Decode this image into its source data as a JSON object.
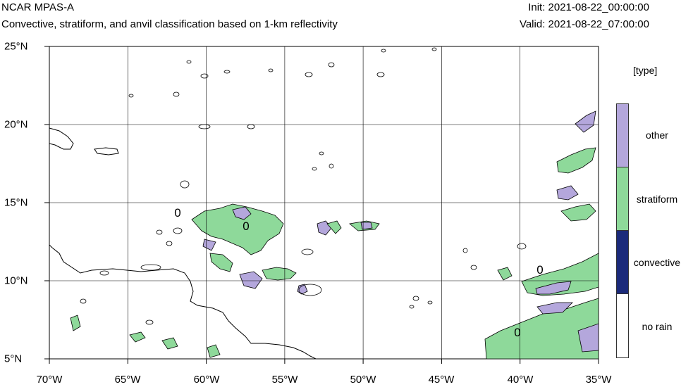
{
  "header": {
    "model": "NCAR MPAS-A",
    "subtitle": "Convective, stratiform, and anvil classification based on 1-km reflectivity",
    "init": "Init: 2021-08-22_00:00:00",
    "valid": "Valid: 2021-08-22_07:00:00"
  },
  "axes": {
    "lon_labels": [
      "70°W",
      "65°W",
      "60°W",
      "55°W",
      "50°W",
      "45°W",
      "40°W",
      "35°W"
    ],
    "lat_labels": [
      "25°N",
      "20°N",
      "15°N",
      "10°N",
      "5°N"
    ],
    "lon_range": [
      -70,
      -35
    ],
    "lat_range": [
      5,
      25
    ],
    "grid": true
  },
  "legend": {
    "title": "[type]",
    "items": [
      {
        "label": "other",
        "color": "#b4a7dc"
      },
      {
        "label": "stratiform",
        "color": "#8ed99a"
      },
      {
        "label": "convective",
        "color": "#1b2a7a"
      },
      {
        "label": "no rain",
        "color": "#ffffff"
      }
    ]
  },
  "contour_labels": [
    "0",
    "0",
    "0",
    "0"
  ],
  "colors": {
    "land_outline": "#000000",
    "grid": "#000000"
  }
}
